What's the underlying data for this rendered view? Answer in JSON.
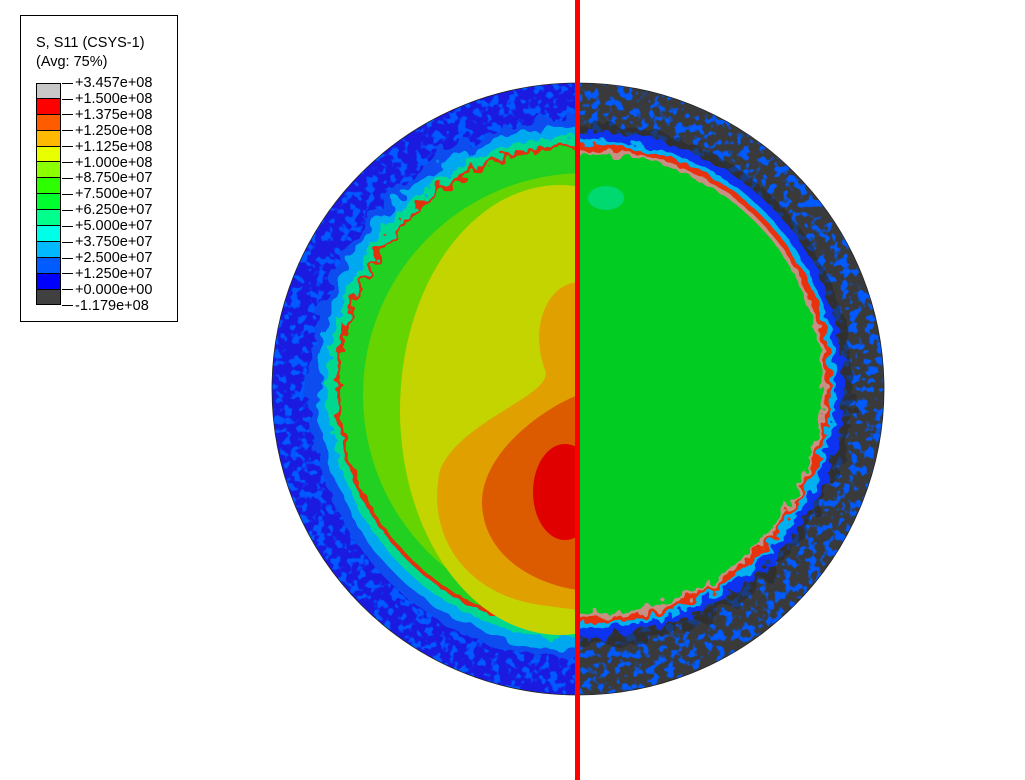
{
  "legend": {
    "title": "S, S11 (CSYS-1)",
    "averaging": "(Avg: 75%)",
    "levels": [
      {
        "label": "+3.457e+08",
        "color": "#C8C8C8"
      },
      {
        "label": "+1.500e+08",
        "color": "#FF0000"
      },
      {
        "label": "+1.375e+08",
        "color": "#FF5C00"
      },
      {
        "label": "+1.250e+08",
        "color": "#FFB900"
      },
      {
        "label": "+1.125e+08",
        "color": "#E8FF00"
      },
      {
        "label": "+1.000e+08",
        "color": "#8CFF00"
      },
      {
        "label": "+8.750e+07",
        "color": "#2EFF00"
      },
      {
        "label": "+7.500e+07",
        "color": "#00FF2E"
      },
      {
        "label": "+6.250e+07",
        "color": "#00FF8C"
      },
      {
        "label": "+5.000e+07",
        "color": "#00FFE8"
      },
      {
        "label": "+3.750e+07",
        "color": "#00B9FF"
      },
      {
        "label": "+2.500e+07",
        "color": "#005CFF"
      },
      {
        "label": "+1.250e+07",
        "color": "#0000FF"
      },
      {
        "label": "+0.000e+00",
        "color": "#404040"
      },
      {
        "label": "-1.179e+08",
        "color": ""
      }
    ]
  },
  "section_line_color": "#FF0000"
}
